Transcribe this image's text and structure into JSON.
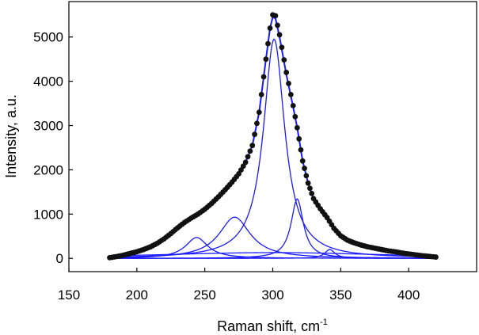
{
  "chart_data": {
    "type": "line",
    "title": "",
    "xlabel": "Raman shift, cm",
    "xlabel_sup": "-1",
    "ylabel": "Intensity, a.u.",
    "xlim": [
      150,
      450
    ],
    "ylim": [
      -300,
      5800
    ],
    "x_ticks": [
      150,
      200,
      250,
      300,
      350,
      400
    ],
    "y_ticks": [
      0,
      1000,
      2000,
      3000,
      4000,
      5000
    ],
    "grid": false,
    "legend": "none",
    "x_range": [
      180,
      420
    ],
    "series": [
      {
        "name": "",
        "kind": "measured-points",
        "color": "#111111",
        "points": [
          [
            180,
            15
          ],
          [
            185,
            40
          ],
          [
            190,
            70
          ],
          [
            195,
            110
          ],
          [
            200,
            150
          ],
          [
            205,
            200
          ],
          [
            210,
            260
          ],
          [
            215,
            340
          ],
          [
            220,
            440
          ],
          [
            225,
            560
          ],
          [
            230,
            690
          ],
          [
            235,
            810
          ],
          [
            240,
            910
          ],
          [
            245,
            1000
          ],
          [
            250,
            1110
          ],
          [
            255,
            1240
          ],
          [
            260,
            1390
          ],
          [
            265,
            1550
          ],
          [
            270,
            1720
          ],
          [
            275,
            1910
          ],
          [
            280,
            2170
          ],
          [
            285,
            2550
          ],
          [
            290,
            3300
          ],
          [
            295,
            4500
          ],
          [
            298,
            5200
          ],
          [
            300,
            5500
          ],
          [
            302,
            5480
          ],
          [
            305,
            5050
          ],
          [
            310,
            4200
          ],
          [
            315,
            3450
          ],
          [
            318,
            2950
          ],
          [
            322,
            2200
          ],
          [
            326,
            1700
          ],
          [
            330,
            1350
          ],
          [
            335,
            1120
          ],
          [
            340,
            920
          ],
          [
            345,
            680
          ],
          [
            350,
            510
          ],
          [
            355,
            410
          ],
          [
            360,
            350
          ],
          [
            365,
            300
          ],
          [
            370,
            260
          ],
          [
            375,
            230
          ],
          [
            380,
            200
          ],
          [
            385,
            170
          ],
          [
            390,
            150
          ],
          [
            395,
            120
          ],
          [
            400,
            100
          ],
          [
            405,
            80
          ],
          [
            410,
            60
          ],
          [
            415,
            45
          ],
          [
            420,
            30
          ]
        ]
      },
      {
        "name": "",
        "kind": "fit-envelope",
        "color": "#1a1aff",
        "points": [
          [
            180,
            15
          ],
          [
            185,
            40
          ],
          [
            190,
            70
          ],
          [
            195,
            110
          ],
          [
            200,
            150
          ],
          [
            205,
            200
          ],
          [
            210,
            260
          ],
          [
            215,
            340
          ],
          [
            220,
            440
          ],
          [
            225,
            560
          ],
          [
            230,
            690
          ],
          [
            235,
            810
          ],
          [
            240,
            910
          ],
          [
            245,
            1000
          ],
          [
            250,
            1110
          ],
          [
            255,
            1240
          ],
          [
            260,
            1390
          ],
          [
            265,
            1550
          ],
          [
            270,
            1720
          ],
          [
            275,
            1910
          ],
          [
            280,
            2170
          ],
          [
            285,
            2550
          ],
          [
            290,
            3300
          ],
          [
            295,
            4500
          ],
          [
            298,
            5200
          ],
          [
            300,
            5450
          ],
          [
            302,
            5420
          ],
          [
            305,
            5000
          ],
          [
            310,
            4150
          ],
          [
            315,
            3420
          ],
          [
            318,
            2950
          ],
          [
            322,
            2200
          ],
          [
            326,
            1700
          ],
          [
            330,
            1350
          ],
          [
            335,
            1120
          ],
          [
            340,
            920
          ],
          [
            345,
            680
          ],
          [
            350,
            510
          ],
          [
            355,
            410
          ],
          [
            360,
            350
          ],
          [
            365,
            300
          ],
          [
            370,
            260
          ],
          [
            375,
            230
          ],
          [
            380,
            200
          ],
          [
            385,
            170
          ],
          [
            390,
            150
          ],
          [
            395,
            120
          ],
          [
            400,
            100
          ],
          [
            405,
            80
          ],
          [
            410,
            60
          ],
          [
            415,
            45
          ],
          [
            420,
            30
          ]
        ]
      },
      {
        "name": "",
        "kind": "fit-component",
        "color": "#1a1aff",
        "center": 301,
        "amplitude": 4950,
        "hwhm": 9.5,
        "offset": 0
      },
      {
        "name": "",
        "kind": "fit-component",
        "color": "#1a1aff",
        "center": 272,
        "amplitude": 930,
        "hwhm": 14,
        "offset": 0
      },
      {
        "name": "",
        "kind": "fit-component",
        "color": "#1a1aff",
        "center": 244,
        "amplitude": 470,
        "hwhm": 10,
        "offset": 0
      },
      {
        "name": "",
        "kind": "fit-component",
        "color": "#1a1aff",
        "center": 318,
        "amplitude": 1340,
        "hwhm": 5.5,
        "offset": 0
      },
      {
        "name": "",
        "kind": "fit-component",
        "color": "#1a1aff",
        "center": 342,
        "amplitude": 200,
        "hwhm": 4.5,
        "offset": 0
      },
      {
        "name": "",
        "kind": "fit-component",
        "color": "#1a1aff",
        "center": 300,
        "amplitude": 130,
        "hwhm": 110,
        "offset": 0
      }
    ]
  }
}
